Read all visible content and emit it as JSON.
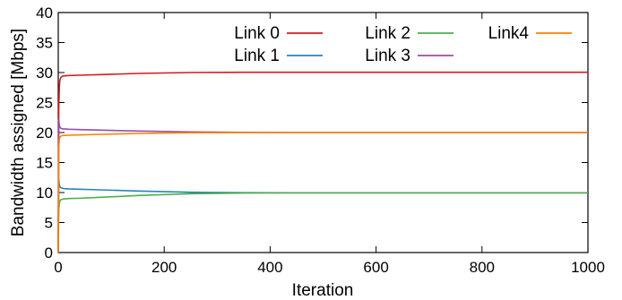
{
  "chart_data": {
    "type": "line",
    "title": "",
    "xlabel": "Iteration",
    "ylabel": "Bandwidth assigned [Mbps]",
    "xlim": [
      0,
      1000
    ],
    "ylim": [
      0,
      40
    ],
    "xticks": [
      0,
      200,
      400,
      600,
      800,
      1000
    ],
    "yticks": [
      0,
      5,
      10,
      15,
      20,
      25,
      30,
      35,
      40
    ],
    "grid": false,
    "legend_position": "top-right",
    "series": [
      {
        "name": "Link 0",
        "color": "#d7191c",
        "x": [
          0,
          1,
          2,
          3,
          5,
          8,
          12,
          20,
          40,
          80,
          150,
          250,
          350,
          450,
          600,
          800,
          1000
        ],
        "y": [
          0,
          24,
          27.5,
          28.7,
          29.2,
          29.4,
          29.45,
          29.5,
          29.55,
          29.65,
          29.85,
          30,
          30.05,
          30.05,
          30.05,
          30.05,
          30.05
        ]
      },
      {
        "name": "Link 1",
        "color": "#2b83ba",
        "x": [
          0,
          1,
          2,
          3,
          5,
          8,
          12,
          20,
          40,
          80,
          150,
          250,
          350,
          450,
          600,
          800,
          1000
        ],
        "y": [
          0,
          12.2,
          11.3,
          11,
          10.8,
          10.7,
          10.65,
          10.6,
          10.55,
          10.45,
          10.25,
          10.05,
          9.98,
          9.95,
          9.95,
          9.95,
          9.95
        ]
      },
      {
        "name": "Link 2",
        "color": "#4daf4a",
        "x": [
          0,
          1,
          2,
          3,
          5,
          8,
          12,
          20,
          40,
          80,
          150,
          250,
          350,
          450,
          600,
          800,
          1000
        ],
        "y": [
          0,
          7.2,
          8.2,
          8.6,
          8.8,
          8.9,
          8.95,
          9,
          9.05,
          9.2,
          9.5,
          9.8,
          9.92,
          9.95,
          9.95,
          9.95,
          9.95
        ]
      },
      {
        "name": "Link 3",
        "color": "#984ea3",
        "x": [
          0,
          1,
          2,
          3,
          5,
          8,
          12,
          20,
          40,
          80,
          150,
          250,
          350,
          450,
          600,
          800,
          1000
        ],
        "y": [
          0,
          22.2,
          21.3,
          20.9,
          20.7,
          20.6,
          20.6,
          20.55,
          20.5,
          20.4,
          20.25,
          20.1,
          20.03,
          20,
          20,
          20,
          20
        ]
      },
      {
        "name": "Link4",
        "color": "#ff7f00",
        "x": [
          0,
          1,
          2,
          3,
          5,
          8,
          12,
          20,
          40,
          80,
          150,
          250,
          350,
          450,
          600,
          800,
          1000
        ],
        "y": [
          0,
          17.5,
          18.8,
          19.2,
          19.4,
          19.5,
          19.52,
          19.55,
          19.6,
          19.7,
          19.85,
          19.97,
          20,
          20,
          20,
          20,
          20
        ]
      }
    ],
    "legend_rows": [
      [
        "Link 0",
        "Link 2",
        "Link4"
      ],
      [
        "Link 1",
        "Link 3"
      ]
    ]
  }
}
